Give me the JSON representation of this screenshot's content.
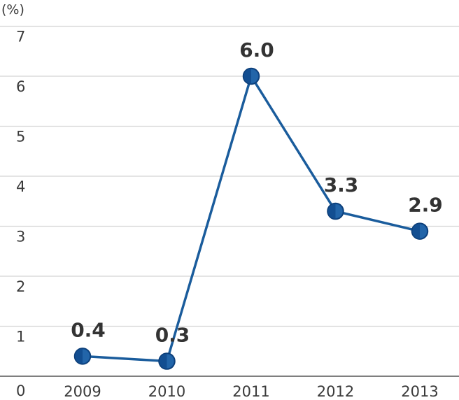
{
  "chart_data": {
    "type": "line",
    "unit_label": "(%)",
    "categories": [
      "2009",
      "2010",
      "2011",
      "2012",
      "2013"
    ],
    "values": [
      0.4,
      0.3,
      6.0,
      3.3,
      2.9
    ],
    "data_labels": [
      "0.4",
      "0.3",
      "6.0",
      "3.3",
      "2.9"
    ],
    "y_ticks": [
      "0",
      "1",
      "2",
      "3",
      "4",
      "5",
      "6",
      "7"
    ],
    "ylim": [
      0,
      7
    ],
    "grid": true,
    "legend": "none",
    "colors": {
      "line": "#1a5c9c",
      "marker": "#124e91",
      "marker_edge": "#0c3e78",
      "grid": "#d4d4d4",
      "axis": "#555555",
      "label": "#333333"
    }
  }
}
